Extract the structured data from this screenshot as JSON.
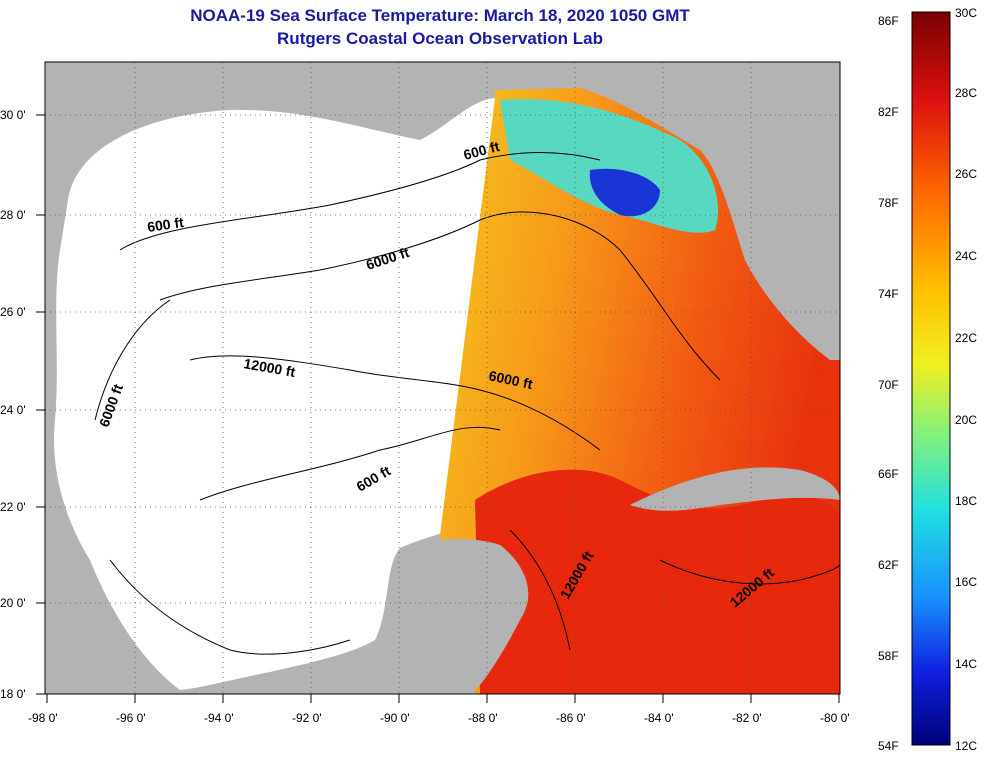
{
  "title_line1": "NOAA-19 Sea Surface Temperature:  March 18, 2020 1050 GMT",
  "title_line2": "Rutgers Coastal Ocean Observation Lab",
  "lon_ticks": [
    "-98 0'",
    "-96 0'",
    "-94 0'",
    "-92 0'",
    "-90 0'",
    "-88 0'",
    "-86 0'",
    "-84 0'",
    "-82 0'",
    "-80 0'"
  ],
  "lat_ticks": [
    "30 0'",
    "28 0'",
    "26 0'",
    "24 0'",
    "22 0'",
    "20 0'",
    "18 0'"
  ],
  "contour_labels": [
    "600 ft",
    "600 ft",
    "600 ft",
    "6000 ft",
    "6000 ft",
    "6000 ft",
    "12000 ft",
    "12000 ft",
    "12000 ft"
  ],
  "colorbar": {
    "fahrenheit": [
      "86F",
      "82F",
      "78F",
      "74F",
      "70F",
      "66F",
      "62F",
      "58F",
      "54F"
    ],
    "celsius": [
      "30C",
      "28C",
      "26C",
      "24C",
      "22C",
      "20C",
      "18C",
      "16C",
      "14C",
      "12C"
    ]
  },
  "colors": {
    "land": "#b3b3b3",
    "no_data": "#ffffff",
    "title": "#1a1aa0"
  }
}
